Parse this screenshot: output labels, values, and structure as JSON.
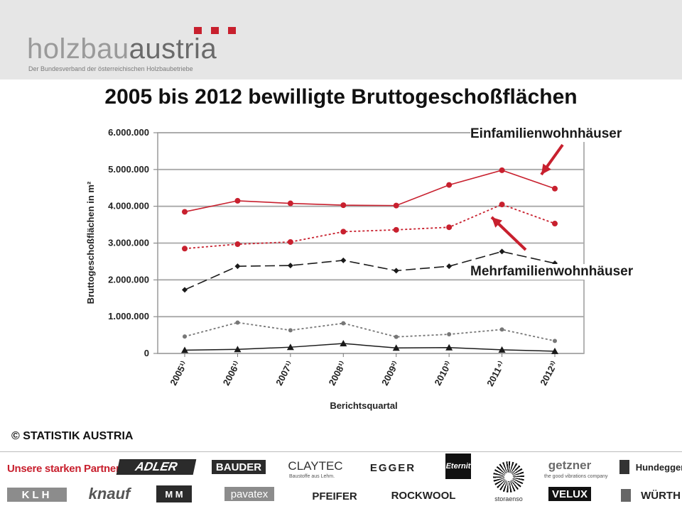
{
  "header": {
    "logo_name_part1": "holzbau",
    "logo_name_part2": "austria",
    "logo_tagline": "Der Bundesverband der österreichischen Holzbaubetriebe",
    "accent_color": "#c8202e"
  },
  "title": "2005 bis 2012 bewilligte Bruttogeschoßflächen",
  "chart_data": {
    "type": "line",
    "title": "",
    "xlabel": "Berichtsquartal",
    "ylabel": "Bruttogeschoßflächen in m²",
    "ylim": [
      0,
      6000000
    ],
    "yticks": [
      0,
      1000000,
      2000000,
      3000000,
      4000000,
      5000000,
      6000000
    ],
    "ytick_labels": [
      "0",
      "1.000.000",
      "2.000.000",
      "3.000.000",
      "4.000.000",
      "5.000.000",
      "6.000.000"
    ],
    "categories": [
      "2005¹⁾",
      "2006¹⁾",
      "2007¹⁾",
      "2008¹⁾",
      "2009²⁾",
      "2010³⁾",
      "2011⁴⁾",
      "2012³⁾"
    ],
    "grid": true,
    "series": [
      {
        "name": "Einfamilienwohnhäuser",
        "style": "solid-red-circle",
        "color": "#c8202e",
        "values": [
          3850000,
          4150000,
          4080000,
          4030000,
          4020000,
          4580000,
          4980000,
          4480000
        ]
      },
      {
        "name": "Mehrfamilienwohnhäuser",
        "style": "dotted-red-circle",
        "color": "#c8202e",
        "values": [
          2850000,
          2970000,
          3030000,
          3310000,
          3360000,
          3430000,
          4050000,
          3530000
        ]
      },
      {
        "style": "dashed-black-diamond",
        "color": "#1a1a1a",
        "values": [
          1730000,
          2370000,
          2390000,
          2530000,
          2250000,
          2370000,
          2770000,
          2450000
        ]
      },
      {
        "style": "dotted-grey-dot",
        "color": "#777777",
        "values": [
          460000,
          840000,
          630000,
          820000,
          450000,
          520000,
          650000,
          340000
        ]
      },
      {
        "style": "solid-black-triangle",
        "color": "#1a1a1a",
        "values": [
          90000,
          110000,
          170000,
          270000,
          150000,
          160000,
          100000,
          60000
        ]
      }
    ],
    "annotations": [
      "Einfamilienwohnhäuser",
      "Mehrfamilienwohnhäuser"
    ]
  },
  "copyright": "© STATISTIK AUSTRIA",
  "partners": {
    "label": "Unsere starken Partner",
    "row1": [
      "ADLER",
      "BAUDER",
      "CLAYTEC",
      "EGGER",
      "Eternit",
      "getzner",
      "Hundegger"
    ],
    "row1_sub": {
      "claytec": "Baustoffe aus Lehm.",
      "getzner": "the good vibrations company"
    },
    "row2": [
      "KLH",
      "knauf",
      "M M",
      "pavatex",
      "PFEIFER",
      "ROCKWOOL",
      "storaenso",
      "VELUX",
      "WÜRTH"
    ]
  }
}
